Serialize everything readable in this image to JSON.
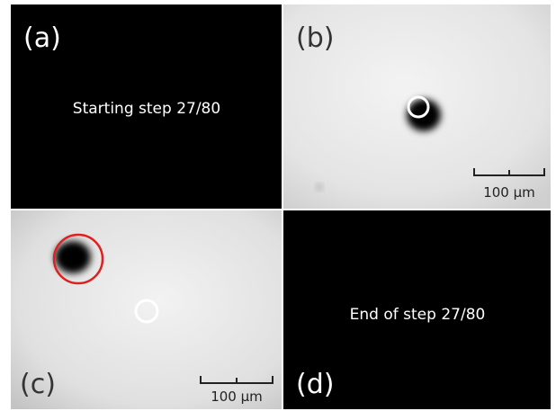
{
  "panels": [
    {
      "label": "(a)",
      "text": "Starting step 27/80"
    },
    {
      "label": "(b)",
      "scale_bar": "100 µm"
    },
    {
      "label": "(c)",
      "scale_bar": "100 µm"
    },
    {
      "label": "(d)",
      "text": "End of step 27/80"
    }
  ]
}
